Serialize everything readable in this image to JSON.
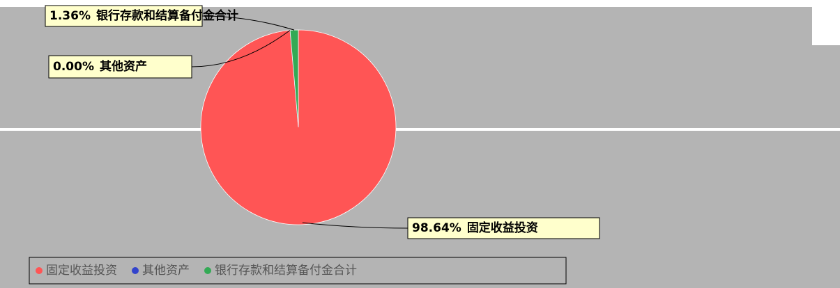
{
  "chart_data": {
    "type": "pie",
    "categories": [
      "固定收益投资",
      "其他资产",
      "银行存款和结算备付金合计"
    ],
    "values": [
      98.64,
      0.0,
      1.36
    ],
    "value_labels": [
      "98.64%",
      "0.00%",
      "1.36%"
    ],
    "colors": [
      "#ff5555",
      "#3344cc",
      "#33aa55"
    ],
    "legend": "bottom"
  }
}
